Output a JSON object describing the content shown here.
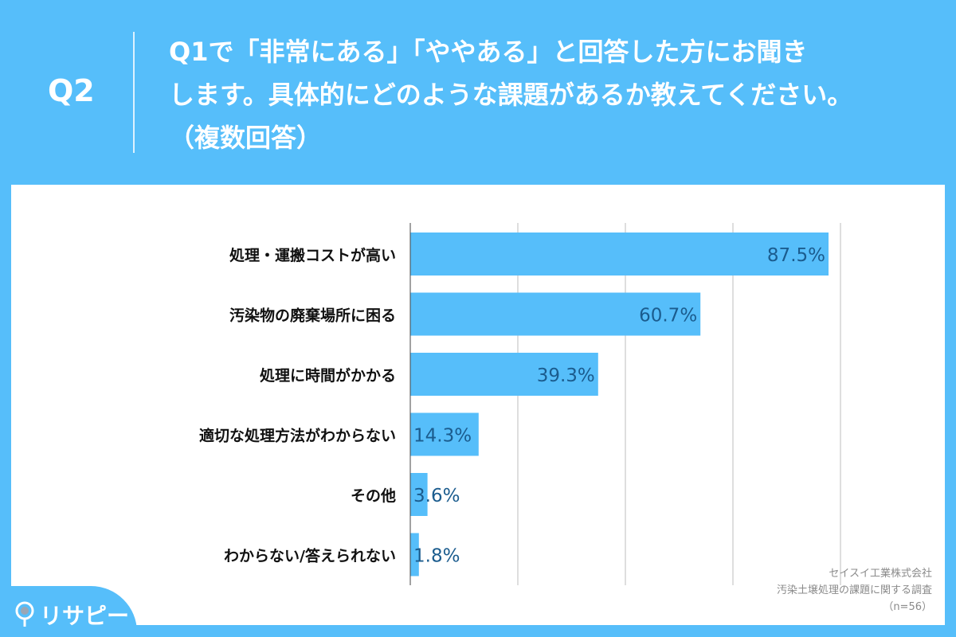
{
  "header": {
    "q_label": "Q2",
    "question_lines": [
      "Q1で「非常にある」「ややある」と回答した方にお聞き",
      "します。具体的にどのような課題があるか教えてください。",
      "（複数回答）"
    ]
  },
  "chart_data": {
    "type": "bar",
    "orientation": "horizontal",
    "categories": [
      "処理・運搬コストが高い",
      "汚染物の廃棄場所に困る",
      "処理に時間がかかる",
      "適切な処理方法がわからない",
      "その他",
      "わからない/答えられない"
    ],
    "values": [
      87.5,
      60.7,
      39.3,
      14.3,
      3.6,
      1.8
    ],
    "value_labels": [
      "87.5%",
      "60.7%",
      "39.3%",
      "14.3%",
      "3.6%",
      "1.8%"
    ],
    "unit": "%",
    "xlim": [
      0,
      100
    ],
    "grid": true,
    "bar_color": "#56BEFA",
    "label_color": "#1B5C8E"
  },
  "source": {
    "company": "セイスイ工業株式会社",
    "survey": "汚染土壌処理の課題に関する調査",
    "n": "（n=56）"
  },
  "logo": {
    "text": "リサピー"
  }
}
